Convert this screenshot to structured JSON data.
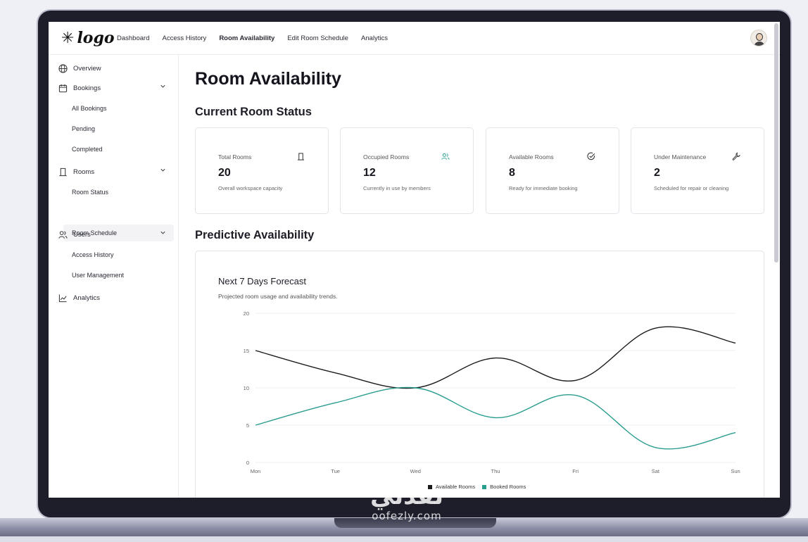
{
  "app": {
    "logo_text": "logo",
    "logo_icon": "asterisk-sparkle-icon"
  },
  "nav": {
    "links": [
      "Dashboard",
      "Access History",
      "Room Availability",
      "Edit Room Schedule",
      "Analytics"
    ],
    "active": "Room Availability",
    "avatar_icon": "user-avatar-icon"
  },
  "sidebar": {
    "overview": "Overview",
    "bookings": {
      "label": "Bookings",
      "items": [
        "All Bookings",
        "Pending",
        "Completed"
      ]
    },
    "rooms": {
      "label": "Rooms",
      "items": [
        "Room Status",
        "Room Schedule"
      ]
    },
    "users": {
      "label": "Users",
      "items": [
        "Access History",
        "User Management"
      ]
    },
    "analytics": "Analytics",
    "active_item": "Room Schedule"
  },
  "page": {
    "title": "Room Availability",
    "status_section": "Current Room Status",
    "forecast_section": "Predictive Availability"
  },
  "stats": [
    {
      "label": "Total Rooms",
      "value": "20",
      "desc": "Overall workspace capacity",
      "icon": "door-icon"
    },
    {
      "label": "Occupied Rooms",
      "value": "12",
      "desc": "Currently in use by members",
      "icon": "users-icon"
    },
    {
      "label": "Available Rooms",
      "value": "8",
      "desc": "Ready for immediate booking",
      "icon": "check-circle-icon"
    },
    {
      "label": "Under Maintenance",
      "value": "2",
      "desc": "Scheduled for repair or cleaning",
      "icon": "wrench-icon"
    }
  ],
  "chart": {
    "title": "Next 7 Days Forecast",
    "subtitle": "Projected room usage and availability trends."
  },
  "chart_data": {
    "type": "line",
    "categories": [
      "Mon",
      "Tue",
      "Wed",
      "Thu",
      "Fri",
      "Sat",
      "Sun"
    ],
    "series": [
      {
        "name": "Available Rooms",
        "values": [
          15,
          12,
          10,
          14,
          11,
          18,
          16
        ],
        "color": "#1c1c1c"
      },
      {
        "name": "Booked Rooms",
        "values": [
          5,
          8,
          10,
          6,
          9,
          2,
          4
        ],
        "color": "#2a9d8f"
      }
    ],
    "y_ticks": [
      "0",
      "5",
      "10",
      "15",
      "20"
    ],
    "ylim": [
      0,
      20
    ],
    "grid": true,
    "legend": "bottom-center"
  },
  "watermark": {
    "logo": "نفذلي",
    "url": "oofezly.com"
  }
}
